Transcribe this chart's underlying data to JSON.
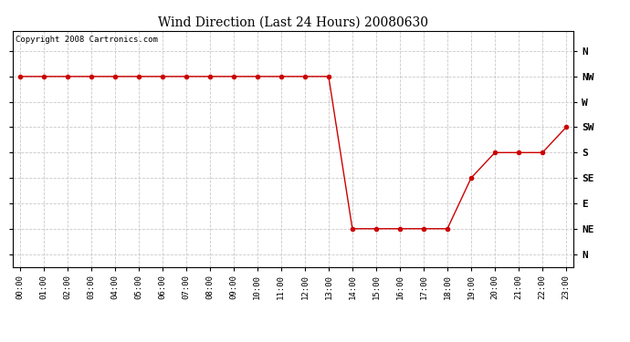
{
  "title": "Wind Direction (Last 24 Hours) 20080630",
  "copyright_text": "Copyright 2008 Cartronics.com",
  "background_color": "#ffffff",
  "plot_bg_color": "#ffffff",
  "grid_color": "#bbbbbb",
  "line_color": "#cc0000",
  "marker_color": "#cc0000",
  "x_labels": [
    "00:00",
    "01:00",
    "02:00",
    "03:00",
    "04:00",
    "05:00",
    "06:00",
    "07:00",
    "08:00",
    "09:00",
    "10:00",
    "11:00",
    "12:00",
    "13:00",
    "14:00",
    "15:00",
    "16:00",
    "17:00",
    "18:00",
    "19:00",
    "20:00",
    "21:00",
    "22:00",
    "23:00"
  ],
  "y_labels": [
    "N",
    "NE",
    "E",
    "SE",
    "S",
    "SW",
    "W",
    "NW",
    "N"
  ],
  "data_hours": [
    0,
    1,
    2,
    3,
    4,
    5,
    6,
    7,
    8,
    9,
    10,
    11,
    12,
    13,
    14,
    15,
    16,
    17,
    18,
    19,
    20,
    21,
    22,
    23
  ],
  "data_values": [
    7,
    7,
    7,
    7,
    7,
    7,
    7,
    7,
    7,
    7,
    7,
    7,
    7,
    7,
    1,
    1,
    1,
    1,
    1,
    3,
    4,
    4,
    4,
    5
  ]
}
